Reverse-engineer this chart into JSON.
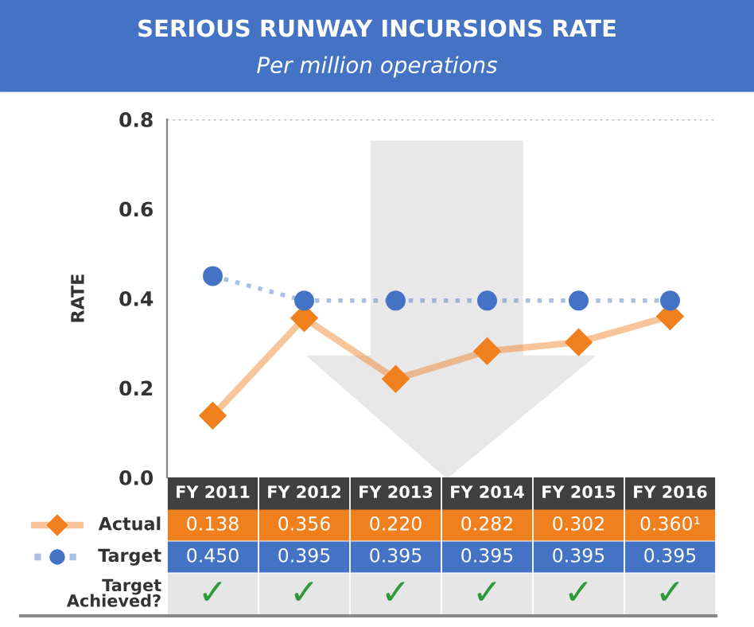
{
  "chart_data": {
    "type": "line",
    "title": "SERIOUS RUNWAY INCURSIONS RATE",
    "subtitle": "Per million operations",
    "ylabel": "RATE",
    "categories": [
      "FY 2011",
      "FY 2012",
      "FY 2013",
      "FY 2014",
      "FY 2015",
      "FY 2016"
    ],
    "series": [
      {
        "name": "Actual",
        "color": "#f07f1e",
        "marker": "diamond",
        "line_style": "solid",
        "values": [
          0.138,
          0.356,
          0.22,
          0.282,
          0.302,
          0.36
        ],
        "value_labels": [
          "0.138",
          "0.356",
          "0.220",
          "0.282",
          "0.302",
          "0.360¹"
        ]
      },
      {
        "name": "Target",
        "color": "#4472c4",
        "marker": "circle",
        "line_style": "dotted",
        "values": [
          0.45,
          0.395,
          0.395,
          0.395,
          0.395,
          0.395
        ],
        "value_labels": [
          "0.450",
          "0.395",
          "0.395",
          "0.395",
          "0.395",
          "0.395"
        ]
      }
    ],
    "ylim": [
      0,
      0.8
    ],
    "yticks": [
      {
        "value": 0,
        "label": "0.0"
      },
      0.2,
      0.4,
      0.6,
      0.8
    ],
    "ref_lines": [
      {
        "axis": "y",
        "value": 0.8,
        "color": "#bbbbbb",
        "line_style": "dotted"
      }
    ],
    "grid": false,
    "legend": "bottom",
    "annotations": [
      "Target Achieved?",
      "✓",
      "✓",
      "✓",
      "✓",
      "✓",
      "✓"
    ]
  }
}
